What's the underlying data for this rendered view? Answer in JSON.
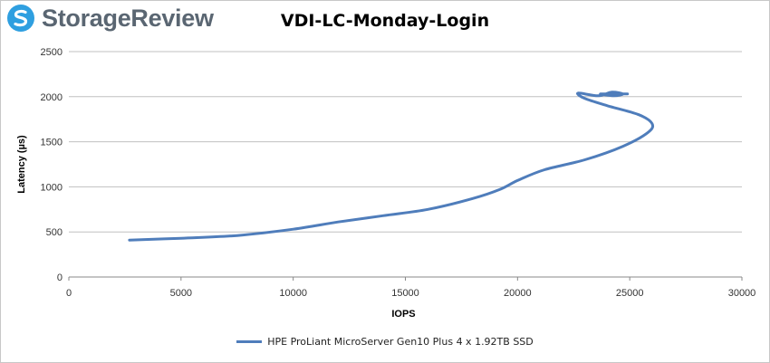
{
  "header": {
    "logo_text": "StorageReview",
    "logo_icon": "storagereview-logo-icon"
  },
  "colors": {
    "series": "#4f7dbb",
    "grid": "#c0c0c0",
    "logo_icon": "#2f9fe0",
    "logo_text": "#5a6672"
  },
  "chart_data": {
    "type": "line",
    "title": "VDI-LC-Monday-Login",
    "xlabel": "IOPS",
    "ylabel": "Latency (µs)",
    "xlim": [
      0,
      30000
    ],
    "ylim": [
      0,
      2500
    ],
    "xticks": [
      0,
      5000,
      10000,
      15000,
      20000,
      25000,
      30000
    ],
    "yticks": [
      0,
      500,
      1000,
      1500,
      2000,
      2500
    ],
    "grid": true,
    "legend_position": "bottom",
    "series": [
      {
        "name": "HPE ProLiant MicroServer Gen10 Plus 4 x 1.92TB SSD",
        "points": [
          [
            2700,
            410
          ],
          [
            5000,
            430
          ],
          [
            7500,
            460
          ],
          [
            10000,
            530
          ],
          [
            12000,
            610
          ],
          [
            14000,
            680
          ],
          [
            16000,
            750
          ],
          [
            18000,
            870
          ],
          [
            19200,
            970
          ],
          [
            20000,
            1070
          ],
          [
            21200,
            1190
          ],
          [
            23000,
            1300
          ],
          [
            24700,
            1450
          ],
          [
            25800,
            1600
          ],
          [
            26000,
            1700
          ],
          [
            25400,
            1800
          ],
          [
            24000,
            1900
          ],
          [
            23000,
            1980
          ],
          [
            22700,
            2040
          ],
          [
            23600,
            2010
          ],
          [
            24200,
            2050
          ],
          [
            24700,
            2030
          ],
          [
            24300,
            2010
          ],
          [
            23700,
            2030
          ],
          [
            24900,
            2030
          ]
        ]
      }
    ]
  }
}
